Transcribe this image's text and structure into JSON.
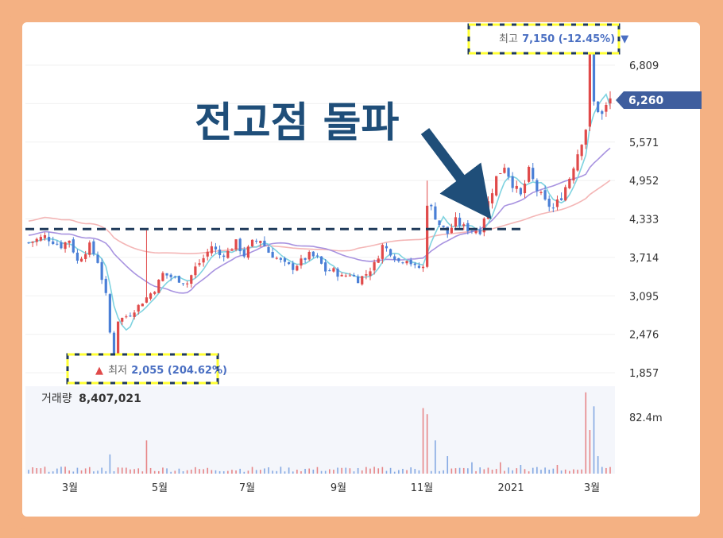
{
  "headline": "전고점 돌파",
  "annotations": {
    "high": {
      "label": "최고",
      "value": "7,150 (-12.45%)",
      "marker": "▼"
    },
    "low": {
      "marker": "▲",
      "label": "최저",
      "value": "2,055 (204.62%)"
    }
  },
  "current_price": "6,260",
  "volume": {
    "label": "거래량",
    "value": "8,407,021",
    "axis_max_label": "82.4m"
  },
  "colors": {
    "up": "#e04a4a",
    "down": "#4a7fd6",
    "ma5": "#7fd3e0",
    "ma20": "#a893e0",
    "ma60": "#f4b6b6",
    "resistance": "#1f3a5a",
    "arrow": "#1f4e79",
    "current_badge": "#3f5e9e",
    "highlight_box": "#ffff33"
  },
  "chart_data": {
    "type": "candlestick",
    "y_ticks": [
      "6,809",
      "6,190",
      "5,571",
      "4,952",
      "4,333",
      "3,714",
      "3,095",
      "2,476",
      "1,857"
    ],
    "y_tick_values": [
      6809,
      6190,
      5571,
      4952,
      4333,
      3714,
      3095,
      2476,
      1857
    ],
    "ylim": [
      1700,
      7300
    ],
    "x_ticks": [
      "3월",
      "5월",
      "7월",
      "9월",
      "11월",
      "2021",
      "3월"
    ],
    "resistance_level": 4170,
    "high": 7150,
    "low": 2055,
    "current": 6260,
    "price_path": [
      [
        0,
        3950
      ],
      [
        4,
        4050
      ],
      [
        8,
        3900
      ],
      [
        10,
        4000
      ],
      [
        12,
        3650
      ],
      [
        15,
        3900
      ],
      [
        17,
        3650
      ],
      [
        19,
        3100
      ],
      [
        20,
        2500
      ],
      [
        21,
        2055
      ],
      [
        22,
        2700
      ],
      [
        25,
        2800
      ],
      [
        28,
        3000
      ],
      [
        31,
        3200
      ],
      [
        33,
        3450
      ],
      [
        35,
        3400
      ],
      [
        37,
        3350
      ],
      [
        39,
        3300
      ],
      [
        41,
        3550
      ],
      [
        43,
        3700
      ],
      [
        45,
        3900
      ],
      [
        47,
        3750
      ],
      [
        49,
        3800
      ],
      [
        51,
        3950
      ],
      [
        53,
        3750
      ],
      [
        55,
        3950
      ],
      [
        57,
        4000
      ],
      [
        59,
        3800
      ],
      [
        61,
        3700
      ],
      [
        63,
        3600
      ],
      [
        65,
        3550
      ],
      [
        67,
        3650
      ],
      [
        69,
        3750
      ],
      [
        71,
        3700
      ],
      [
        73,
        3500
      ],
      [
        75,
        3500
      ],
      [
        77,
        3400
      ],
      [
        79,
        3450
      ],
      [
        81,
        3350
      ],
      [
        83,
        3450
      ],
      [
        85,
        3600
      ],
      [
        87,
        3900
      ],
      [
        89,
        3800
      ],
      [
        91,
        3650
      ],
      [
        93,
        3700
      ],
      [
        95,
        3550
      ],
      [
        97,
        3550
      ],
      [
        98,
        4600
      ],
      [
        99,
        4500
      ],
      [
        101,
        4250
      ],
      [
        103,
        4100
      ],
      [
        105,
        4300
      ],
      [
        107,
        4200
      ],
      [
        109,
        4150
      ],
      [
        111,
        4150
      ],
      [
        113,
        4600
      ],
      [
        115,
        5000
      ],
      [
        117,
        5200
      ],
      [
        119,
        4900
      ],
      [
        121,
        4700
      ],
      [
        123,
        5100
      ],
      [
        125,
        4800
      ],
      [
        127,
        4600
      ],
      [
        129,
        4500
      ],
      [
        131,
        4700
      ],
      [
        133,
        5000
      ],
      [
        135,
        5400
      ],
      [
        137,
        5800
      ],
      [
        138,
        7150
      ],
      [
        139,
        6200
      ],
      [
        141,
        6000
      ],
      [
        143,
        6260
      ]
    ],
    "volume_spikes": [
      [
        20,
        0.22
      ],
      [
        29,
        0.38
      ],
      [
        97,
        0.75
      ],
      [
        98,
        0.68
      ],
      [
        100,
        0.38
      ],
      [
        103,
        0.2
      ],
      [
        109,
        0.13
      ],
      [
        116,
        0.13
      ],
      [
        121,
        0.1
      ],
      [
        130,
        0.1
      ],
      [
        137,
        0.93
      ],
      [
        138,
        0.5
      ],
      [
        139,
        0.77
      ],
      [
        140,
        0.2
      ]
    ]
  }
}
